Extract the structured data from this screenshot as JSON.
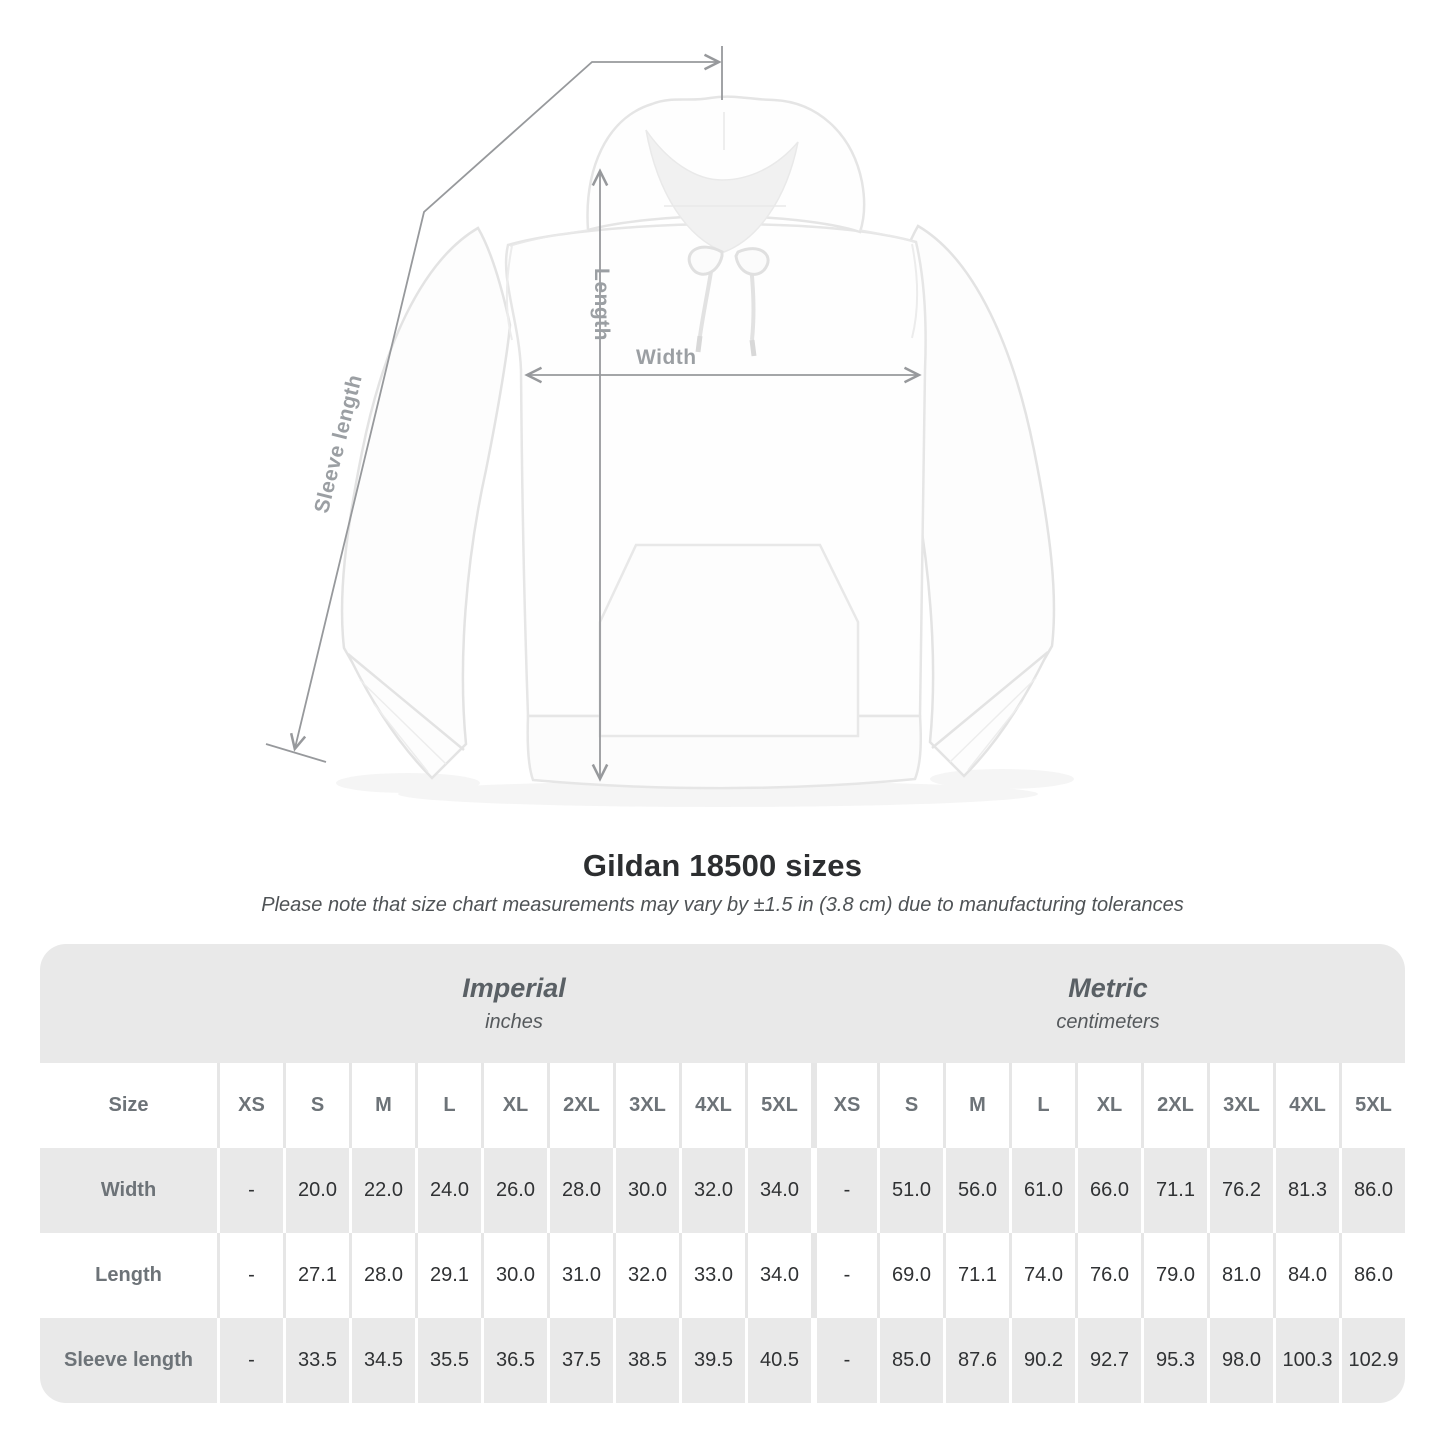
{
  "title": "Gildan 18500 sizes",
  "subtitle": "Please note that size chart measurements may vary by ±1.5 in (3.8 cm) due to manufacturing tolerances",
  "figure": {
    "labels": {
      "length": "Length",
      "width": "Width",
      "sleeve": "Sleeve length"
    }
  },
  "chart_data": {
    "type": "table",
    "title": "Gildan 18500 sizes",
    "note": "Size chart measurements may vary by ±1.5 in (3.8 cm) due to manufacturing tolerances",
    "size_header": "Size",
    "unit_groups": [
      {
        "label": "Imperial",
        "sublabel": "inches"
      },
      {
        "label": "Metric",
        "sublabel": "centimeters"
      }
    ],
    "columns": [
      "XS",
      "S",
      "M",
      "L",
      "XL",
      "2XL",
      "3XL",
      "4XL",
      "5XL"
    ],
    "rows": [
      {
        "label": "Width",
        "imperial": [
          "-",
          "20.0",
          "22.0",
          "24.0",
          "26.0",
          "28.0",
          "30.0",
          "32.0",
          "34.0"
        ],
        "metric": [
          "-",
          "51.0",
          "56.0",
          "61.0",
          "66.0",
          "71.1",
          "76.2",
          "81.3",
          "86.0"
        ]
      },
      {
        "label": "Length",
        "imperial": [
          "-",
          "27.1",
          "28.0",
          "29.1",
          "30.0",
          "31.0",
          "32.0",
          "33.0",
          "34.0"
        ],
        "metric": [
          "-",
          "69.0",
          "71.1",
          "74.0",
          "76.0",
          "79.0",
          "81.0",
          "84.0",
          "86.0"
        ]
      },
      {
        "label": "Sleeve length",
        "imperial": [
          "-",
          "33.5",
          "34.5",
          "35.5",
          "36.5",
          "37.5",
          "38.5",
          "39.5",
          "40.5"
        ],
        "metric": [
          "-",
          "85.0",
          "87.6",
          "90.2",
          "92.7",
          "95.3",
          "98.0",
          "100.3",
          "102.9"
        ]
      }
    ]
  },
  "colors": {
    "background": "#ffffff",
    "table_band": "#e9e9e9",
    "row_alt": "#e9e9e9",
    "separator_on_white": "#e6e6e6",
    "separator_on_gray": "#ffffff",
    "measure_line": "#97999c",
    "measure_label": "#9b9fa3",
    "title_text": "#2c2e30",
    "value_text": "#303234",
    "header_text": "#6d7378",
    "band_text": "#5a6065"
  }
}
